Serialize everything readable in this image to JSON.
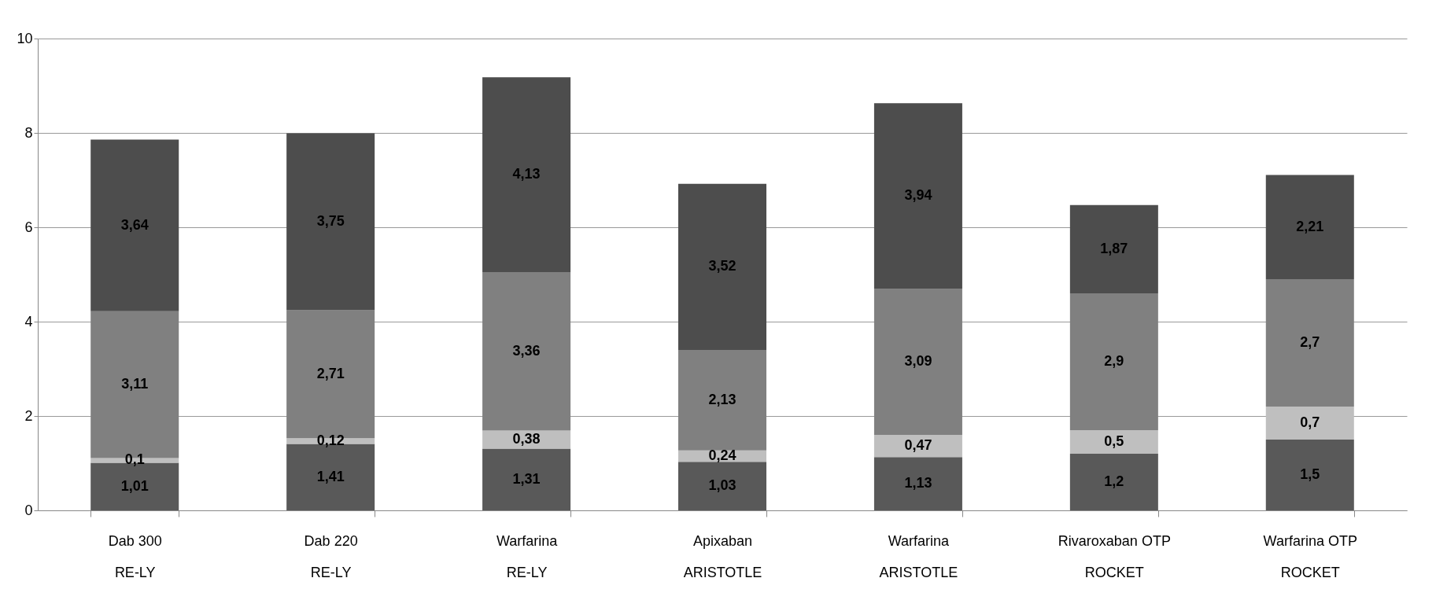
{
  "chart_data": {
    "type": "bar",
    "stacked": true,
    "categories": [
      "Dab 300\nRE-LY",
      "Dab 220\nRE-LY",
      "Warfarina\nRE-LY",
      "Apixaban\nARISTOTLE",
      "Warfarina\nARISTOTLE",
      "Rivaroxaban OTP\nROCKET",
      "Warfarina OTP\nROCKET"
    ],
    "series": [
      {
        "color": "#595959",
        "values": [
          1.01,
          1.41,
          1.31,
          1.03,
          1.13,
          1.2,
          1.5
        ],
        "value_labels": [
          "1,01",
          "1,41",
          "1,31",
          "1,03",
          "1,13",
          "1,2",
          "1,5"
        ]
      },
      {
        "color": "#bfbfbf",
        "values": [
          0.1,
          0.12,
          0.38,
          0.24,
          0.47,
          0.5,
          0.7
        ],
        "value_labels": [
          "0,1",
          "0,12",
          "0,38",
          "0,24",
          "0,47",
          "0,5",
          "0,7"
        ]
      },
      {
        "color": "#808080",
        "values": [
          3.11,
          2.71,
          3.36,
          2.13,
          3.09,
          2.9,
          2.7
        ],
        "value_labels": [
          "3,11",
          "2,71",
          "3,36",
          "2,13",
          "3,09",
          "2,9",
          "2,7"
        ]
      },
      {
        "color": "#4d4d4d",
        "values": [
          3.64,
          3.75,
          4.13,
          3.52,
          3.94,
          1.87,
          2.21
        ],
        "value_labels": [
          "3,64",
          "3,75",
          "4,13",
          "3,52",
          "3,94",
          "1,87",
          "2,21"
        ]
      }
    ],
    "ylim": [
      0,
      10
    ],
    "yticks": [
      0,
      2,
      4,
      6,
      8,
      10
    ],
    "grid": "y",
    "legend": false
  }
}
